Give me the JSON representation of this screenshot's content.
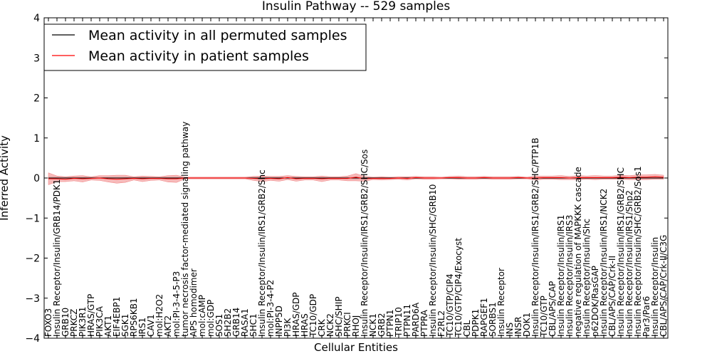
{
  "chart_data": {
    "type": "line",
    "title": "Insulin Pathway -- 529 samples",
    "xlabel": "Cellular Entities",
    "ylabel": "Inferred Activity",
    "ylim": [
      -4,
      4
    ],
    "yticks": [
      -4,
      -3,
      -2,
      -1,
      0,
      1,
      2,
      3,
      4
    ],
    "grid": false,
    "legend_position": "top-left",
    "categories": [
      "FOXO3",
      "Insulin Receptor/Insulin/GRB14/PDK1",
      "GRB10",
      "PRKCZ",
      "PIK3R1",
      "HRAS/GTP",
      "PIK3CA",
      "AKT1",
      "EIF4EBP1",
      "SGK1",
      "RPS6KB1",
      "IRS1",
      "CAV1",
      "mol:H2O2",
      "AKT2",
      "mol:PI-3-4-5-P3",
      "tumor necrosis factor-mediated signaling pathway",
      "APS homodimer",
      "mol:cAMP",
      "mol:GDP",
      "SOS1",
      "SH2B2",
      "GRB14",
      "RASA1",
      "SHC1",
      "Insulin Receptor/Insulin/IRS1/GRB2/Shc",
      "mol:PI-3-4-P2",
      "INPP5D",
      "PI3K",
      "HRAS/GDP",
      "HRAS",
      "TC10/GDP",
      "CRK",
      "NCK2",
      "SHC/SHIP",
      "PRKCI",
      "RHOJ",
      "Insulin Receptor/Insulin/IRS1/GRB2/SHC/Sos",
      "NCK1",
      "GRB2",
      "PTPN1",
      "TRIP10",
      "PTPN11",
      "PARD6A",
      "PTPRA",
      "Insulin Receptor/Insulin/SHC/GRB10",
      "F2RL2",
      "TC10/GTP/CIP4",
      "TC10/GTP/CIP4/Exocyst",
      "CBL",
      "PDPK1",
      "RAPGEF1",
      "SORBS1",
      "Insulin Receptor",
      "INS",
      "INSR",
      "DOK1",
      "Insulin Receptor/Insulin/IRS1/GRB2/SHC/PTP1B",
      "TC10/GTP",
      "CBL/APS/CAP",
      "Insulin Receptor/Insulin/IRS1",
      "Insulin Receptor/Insulin/IRS3",
      "negative regulation of MAPKKK cascade",
      "Insulin Receptor/Insulin/Shc",
      "p62DOK/RasGAP",
      "Insulin Receptor/Insulin/IRS1/NCK2",
      "CBL/APS/CAP/Crk-II",
      "Insulin Receptor/Insulin/IRS1/GRB2/SHC",
      "Insulin Receptor/Insulin/IRS1/Shp2",
      "Insulin Receptor/Insulin/SHC/GRB2/Sos1",
      "Par3/Par6",
      "Insulin Receptor/Insulin",
      "CBL/APS/CAP/Crk-II/C3G"
    ],
    "series": [
      {
        "name": "Mean activity in all permuted samples",
        "color": "#000000",
        "band_color": "#bfbfbf",
        "values": [
          0.0,
          0.0,
          0.0,
          0.0,
          0.0,
          0.0,
          0.0,
          0.0,
          0.0,
          0.0,
          0.0,
          0.0,
          0.0,
          0.0,
          0.0,
          0.0,
          0.0,
          0.0,
          0.0,
          0.0,
          0.0,
          0.0,
          0.0,
          0.0,
          0.0,
          0.0,
          0.0,
          0.0,
          0.0,
          0.0,
          0.0,
          0.0,
          0.0,
          0.0,
          0.0,
          0.0,
          0.0,
          0.0,
          0.0,
          0.0,
          0.0,
          0.0,
          0.0,
          0.0,
          0.0,
          0.0,
          0.0,
          0.0,
          0.0,
          0.0,
          0.0,
          0.0,
          0.0,
          0.0,
          0.0,
          0.0,
          0.0,
          0.0,
          0.0,
          0.0,
          0.0,
          0.0,
          0.0,
          0.0,
          0.0,
          0.0,
          0.0,
          0.0,
          0.0,
          0.0,
          0.0,
          0.0,
          0.0
        ],
        "spread": [
          0.02,
          0.03,
          0.02,
          0.02,
          0.02,
          0.02,
          0.02,
          0.02,
          0.02,
          0.02,
          0.02,
          0.02,
          0.02,
          0.02,
          0.02,
          0.02,
          0.02,
          0.02,
          0.02,
          0.02,
          0.02,
          0.02,
          0.02,
          0.02,
          0.02,
          0.02,
          0.02,
          0.02,
          0.02,
          0.02,
          0.02,
          0.02,
          0.02,
          0.02,
          0.02,
          0.02,
          0.03,
          0.02,
          0.02,
          0.02,
          0.02,
          0.02,
          0.02,
          0.02,
          0.02,
          0.02,
          0.02,
          0.02,
          0.02,
          0.02,
          0.02,
          0.02,
          0.02,
          0.02,
          0.02,
          0.02,
          0.02,
          0.02,
          0.02,
          0.02,
          0.02,
          0.02,
          0.02,
          0.02,
          0.02,
          0.02,
          0.02,
          0.02,
          0.02,
          0.02,
          0.02,
          0.02,
          0.02
        ]
      },
      {
        "name": "Mean activity in patient samples",
        "color": "#ff0000",
        "band_color": "#f08080",
        "values": [
          -0.02,
          -0.02,
          -0.03,
          -0.01,
          -0.02,
          -0.01,
          0.0,
          -0.02,
          -0.03,
          -0.02,
          -0.01,
          -0.02,
          -0.01,
          -0.01,
          -0.02,
          -0.02,
          0.0,
          0.0,
          0.0,
          0.0,
          0.0,
          0.0,
          0.0,
          0.0,
          -0.01,
          -0.02,
          -0.01,
          -0.02,
          0.01,
          -0.02,
          -0.01,
          -0.01,
          -0.02,
          -0.01,
          -0.01,
          -0.01,
          0.02,
          -0.02,
          -0.01,
          -0.01,
          -0.01,
          0.0,
          -0.01,
          0.01,
          0.0,
          0.0,
          0.0,
          0.01,
          0.01,
          0.0,
          0.0,
          0.01,
          0.0,
          0.0,
          0.0,
          0.01,
          0.0,
          0.0,
          0.01,
          0.01,
          0.01,
          0.0,
          0.01,
          0.01,
          0.01,
          0.01,
          0.01,
          0.02,
          0.01,
          0.02,
          0.02,
          0.03,
          0.02
        ],
        "spread": [
          0.15,
          0.07,
          0.06,
          0.06,
          0.08,
          0.04,
          0.06,
          0.08,
          0.1,
          0.09,
          0.04,
          0.07,
          0.05,
          0.04,
          0.08,
          0.09,
          0.02,
          0.02,
          0.02,
          0.02,
          0.02,
          0.02,
          0.02,
          0.02,
          0.05,
          0.07,
          0.05,
          0.06,
          0.05,
          0.06,
          0.04,
          0.04,
          0.07,
          0.04,
          0.04,
          0.06,
          0.09,
          0.06,
          0.03,
          0.04,
          0.03,
          0.03,
          0.04,
          0.03,
          0.03,
          0.03,
          0.02,
          0.03,
          0.04,
          0.03,
          0.03,
          0.03,
          0.03,
          0.03,
          0.03,
          0.03,
          0.02,
          0.05,
          0.04,
          0.04,
          0.05,
          0.04,
          0.05,
          0.04,
          0.05,
          0.04,
          0.04,
          0.05,
          0.05,
          0.06,
          0.06,
          0.06,
          0.05
        ]
      }
    ]
  }
}
